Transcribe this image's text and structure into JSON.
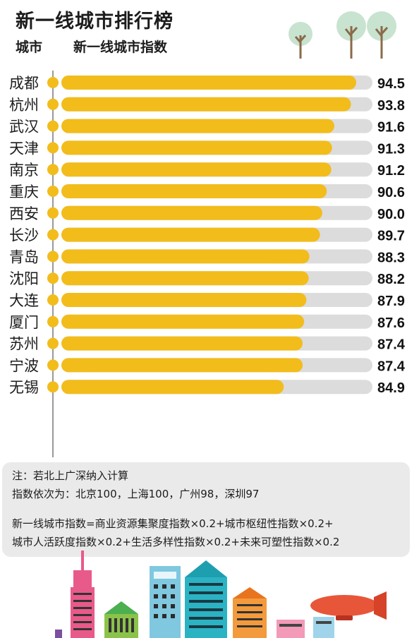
{
  "header": {
    "title": "新一线城市排行榜",
    "col_city": "城市",
    "col_index": "新一线城市指数"
  },
  "chart_data": {
    "type": "bar",
    "orientation": "horizontal",
    "title": "新一线城市排行榜",
    "xlabel": "新一线城市指数",
    "ylabel": "城市",
    "xlim": [
      0,
      100
    ],
    "categories": [
      "成都",
      "杭州",
      "武汉",
      "天津",
      "南京",
      "重庆",
      "西安",
      "长沙",
      "青岛",
      "沈阳",
      "大连",
      "厦门",
      "苏州",
      "宁波",
      "无锡"
    ],
    "values": [
      94.5,
      93.8,
      91.6,
      91.3,
      91.2,
      90.6,
      90.0,
      89.7,
      88.3,
      88.2,
      87.9,
      87.6,
      87.4,
      87.4,
      84.9
    ],
    "value_labels": [
      "94.5",
      "93.8",
      "91.6",
      "91.3",
      "91.2",
      "90.6",
      "90.0",
      "89.7",
      "88.3",
      "88.2",
      "87.9",
      "87.6",
      "87.4",
      "87.4",
      "84.9"
    ],
    "bar_color": "#f2bc1b",
    "track_color": "#dcdcdc",
    "grid": false,
    "legend": "none"
  },
  "notes": {
    "line1": "注：若北上广深纳入计算",
    "line2": "指数依次为：北京100，上海100，广州98，深圳97",
    "line3": "新一线城市指数=商业资源集聚度指数×0.2+城市枢纽性指数×0.2+",
    "line4": "城市人活跃度指数×0.2+生活多样性指数×0.2+未来可塑性指数×0.2"
  }
}
